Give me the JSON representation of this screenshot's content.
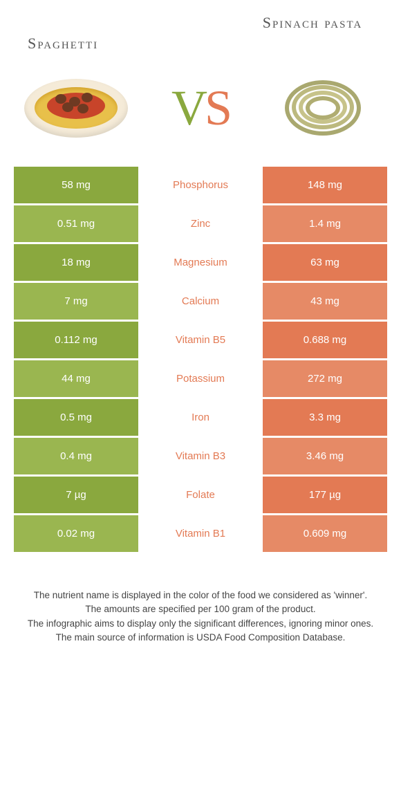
{
  "colors": {
    "green": "#8aa83e",
    "green_light": "#9ab650",
    "orange": "#e37a54",
    "orange_light": "#e68a66",
    "mid_text_orange": "#e37a54"
  },
  "header": {
    "left_title": "Spaghetti",
    "right_title": "Spinach pasta",
    "vs_v": "V",
    "vs_s": "S"
  },
  "rows": [
    {
      "left": "58 mg",
      "mid": "Phosphorus",
      "right": "148 mg",
      "left_bg": "#8aa83e",
      "right_bg": "#e37a54",
      "mid_color": "#e37a54"
    },
    {
      "left": "0.51 mg",
      "mid": "Zinc",
      "right": "1.4 mg",
      "left_bg": "#9ab650",
      "right_bg": "#e68a66",
      "mid_color": "#e37a54"
    },
    {
      "left": "18 mg",
      "mid": "Magnesium",
      "right": "63 mg",
      "left_bg": "#8aa83e",
      "right_bg": "#e37a54",
      "mid_color": "#e37a54"
    },
    {
      "left": "7 mg",
      "mid": "Calcium",
      "right": "43 mg",
      "left_bg": "#9ab650",
      "right_bg": "#e68a66",
      "mid_color": "#e37a54"
    },
    {
      "left": "0.112 mg",
      "mid": "Vitamin B5",
      "right": "0.688 mg",
      "left_bg": "#8aa83e",
      "right_bg": "#e37a54",
      "mid_color": "#e37a54"
    },
    {
      "left": "44 mg",
      "mid": "Potassium",
      "right": "272 mg",
      "left_bg": "#9ab650",
      "right_bg": "#e68a66",
      "mid_color": "#e37a54"
    },
    {
      "left": "0.5 mg",
      "mid": "Iron",
      "right": "3.3 mg",
      "left_bg": "#8aa83e",
      "right_bg": "#e37a54",
      "mid_color": "#e37a54"
    },
    {
      "left": "0.4 mg",
      "mid": "Vitamin B3",
      "right": "3.46 mg",
      "left_bg": "#9ab650",
      "right_bg": "#e68a66",
      "mid_color": "#e37a54"
    },
    {
      "left": "7 µg",
      "mid": "Folate",
      "right": "177 µg",
      "left_bg": "#8aa83e",
      "right_bg": "#e37a54",
      "mid_color": "#e37a54"
    },
    {
      "left": "0.02 mg",
      "mid": "Vitamin B1",
      "right": "0.609 mg",
      "left_bg": "#9ab650",
      "right_bg": "#e68a66",
      "mid_color": "#e37a54"
    }
  ],
  "footer": {
    "line1": "The nutrient name is displayed in the color of the food we considered as 'winner'.",
    "line2": "The amounts are specified per 100 gram of the product.",
    "line3": "The infographic aims to display only the significant differences, ignoring minor ones.",
    "line4": "The main source of information is USDA Food Composition Database."
  }
}
